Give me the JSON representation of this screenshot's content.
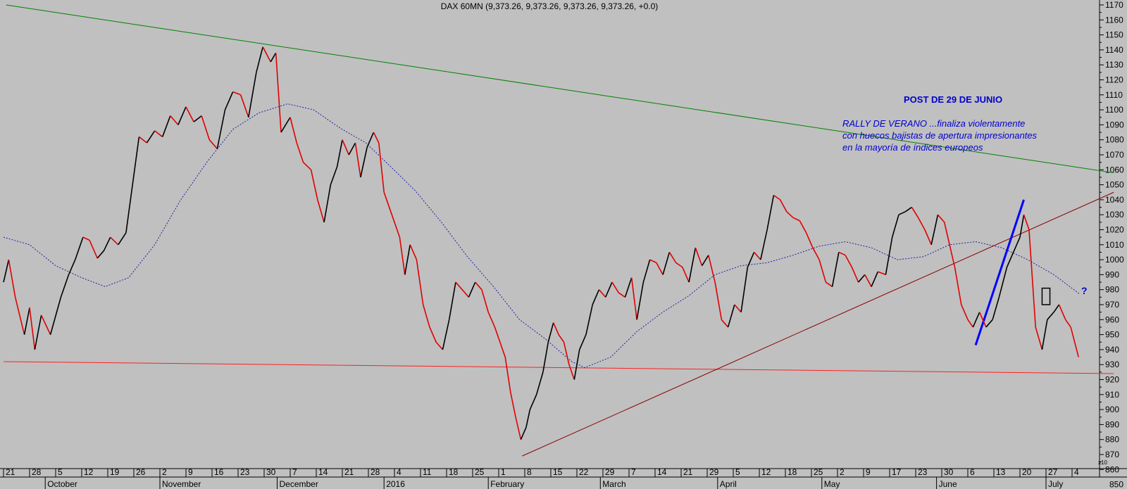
{
  "chart_data": {
    "type": "line",
    "title": "DAX 60MN (9,373.26, 9,373.26, 9,373.26, 9,373.26, +0.0)",
    "ylim": [
      850,
      1170
    ],
    "y_multiplier_label": "x10",
    "y_ticks": [
      860,
      870,
      880,
      890,
      900,
      910,
      920,
      930,
      940,
      950,
      960,
      970,
      980,
      990,
      1000,
      1010,
      1020,
      1030,
      1040,
      1050,
      1060,
      1070,
      1080,
      1090,
      1100,
      1110,
      1120,
      1130,
      1140,
      1150,
      1160,
      1170
    ],
    "y_tick_text": [
      "860",
      "870",
      "880",
      "890",
      "900",
      "910",
      "920",
      "930",
      "940",
      "950",
      "960",
      "970",
      "980",
      "990",
      "1000",
      "1010",
      "1020",
      "1030",
      "1040",
      "1050",
      "1060",
      "1070",
      "1080",
      "1090",
      "1100",
      "1110",
      "1120",
      "1130",
      "1140",
      "1150",
      "1160",
      "1170"
    ],
    "y_end_label": "850",
    "x_range": [
      0,
      42.6
    ],
    "day_ticks": [
      "21",
      "28",
      "5",
      "12",
      "19",
      "26",
      "2",
      "9",
      "16",
      "23",
      "30",
      "7",
      "14",
      "21",
      "28",
      "4",
      "11",
      "18",
      "25",
      "1",
      "8",
      "15",
      "22",
      "29",
      "7",
      "14",
      "21",
      "29",
      "5",
      "12",
      "18",
      "25",
      "2",
      "9",
      "17",
      "23",
      "30",
      "6",
      "13",
      "20",
      "27",
      "4"
    ],
    "month_labels": [
      {
        "text": "October",
        "week": 1.6
      },
      {
        "text": "November",
        "week": 6.0
      },
      {
        "text": "December",
        "week": 10.5
      },
      {
        "text": "2016",
        "week": 14.6
      },
      {
        "text": "February",
        "week": 18.6
      },
      {
        "text": "March",
        "week": 22.9
      },
      {
        "text": "April",
        "week": 27.4
      },
      {
        "text": "May",
        "week": 31.4
      },
      {
        "text": "June",
        "week": 35.8
      },
      {
        "text": "July",
        "week": 40.0
      }
    ],
    "series": [
      {
        "kind": "price",
        "colors": {
          "up": "#000000",
          "down": "#e00000"
        },
        "points": [
          [
            0.0,
            985
          ],
          [
            0.2,
            1000
          ],
          [
            0.45,
            975
          ],
          [
            0.8,
            950
          ],
          [
            1.0,
            968
          ],
          [
            1.2,
            940
          ],
          [
            1.45,
            963
          ],
          [
            1.8,
            950
          ],
          [
            2.2,
            975
          ],
          [
            2.5,
            990
          ],
          [
            2.75,
            1000
          ],
          [
            3.05,
            1015
          ],
          [
            3.3,
            1013
          ],
          [
            3.6,
            1001
          ],
          [
            3.85,
            1006
          ],
          [
            4.1,
            1015
          ],
          [
            4.4,
            1010
          ],
          [
            4.7,
            1018
          ],
          [
            4.95,
            1050
          ],
          [
            5.2,
            1082
          ],
          [
            5.5,
            1078
          ],
          [
            5.8,
            1086
          ],
          [
            6.1,
            1082
          ],
          [
            6.4,
            1096
          ],
          [
            6.7,
            1090
          ],
          [
            7.0,
            1102
          ],
          [
            7.3,
            1092
          ],
          [
            7.6,
            1096
          ],
          [
            7.9,
            1080
          ],
          [
            8.2,
            1074
          ],
          [
            8.5,
            1100
          ],
          [
            8.8,
            1112
          ],
          [
            9.1,
            1110
          ],
          [
            9.4,
            1095
          ],
          [
            9.7,
            1125
          ],
          [
            9.95,
            1142
          ],
          [
            10.25,
            1132
          ],
          [
            10.45,
            1138
          ],
          [
            10.65,
            1085
          ],
          [
            11.0,
            1095
          ],
          [
            11.25,
            1078
          ],
          [
            11.5,
            1065
          ],
          [
            11.8,
            1060
          ],
          [
            12.05,
            1040
          ],
          [
            12.3,
            1025
          ],
          [
            12.55,
            1050
          ],
          [
            12.8,
            1062
          ],
          [
            13.0,
            1080
          ],
          [
            13.25,
            1070
          ],
          [
            13.5,
            1078
          ],
          [
            13.7,
            1055
          ],
          [
            13.95,
            1075
          ],
          [
            14.2,
            1085
          ],
          [
            14.4,
            1078
          ],
          [
            14.6,
            1045
          ],
          [
            14.9,
            1030
          ],
          [
            15.2,
            1015
          ],
          [
            15.4,
            990
          ],
          [
            15.6,
            1010
          ],
          [
            15.85,
            1000
          ],
          [
            16.1,
            970
          ],
          [
            16.35,
            955
          ],
          [
            16.6,
            945
          ],
          [
            16.85,
            940
          ],
          [
            17.1,
            960
          ],
          [
            17.35,
            985
          ],
          [
            17.6,
            980
          ],
          [
            17.85,
            975
          ],
          [
            18.1,
            985
          ],
          [
            18.35,
            980
          ],
          [
            18.6,
            965
          ],
          [
            18.85,
            955
          ],
          [
            19.05,
            945
          ],
          [
            19.25,
            935
          ],
          [
            19.45,
            912
          ],
          [
            19.65,
            895
          ],
          [
            19.85,
            880
          ],
          [
            20.05,
            888
          ],
          [
            20.2,
            900
          ],
          [
            20.45,
            910
          ],
          [
            20.7,
            925
          ],
          [
            20.9,
            945
          ],
          [
            21.1,
            958
          ],
          [
            21.3,
            950
          ],
          [
            21.5,
            945
          ],
          [
            21.7,
            930
          ],
          [
            21.9,
            920
          ],
          [
            22.1,
            940
          ],
          [
            22.35,
            950
          ],
          [
            22.6,
            970
          ],
          [
            22.85,
            980
          ],
          [
            23.1,
            975
          ],
          [
            23.35,
            985
          ],
          [
            23.6,
            978
          ],
          [
            23.85,
            975
          ],
          [
            24.1,
            988
          ],
          [
            24.3,
            960
          ],
          [
            24.55,
            985
          ],
          [
            24.8,
            1000
          ],
          [
            25.05,
            998
          ],
          [
            25.3,
            990
          ],
          [
            25.55,
            1005
          ],
          [
            25.8,
            998
          ],
          [
            26.05,
            995
          ],
          [
            26.3,
            985
          ],
          [
            26.55,
            1008
          ],
          [
            26.8,
            996
          ],
          [
            27.05,
            1003
          ],
          [
            27.3,
            985
          ],
          [
            27.55,
            960
          ],
          [
            27.8,
            955
          ],
          [
            28.05,
            970
          ],
          [
            28.3,
            965
          ],
          [
            28.55,
            995
          ],
          [
            28.8,
            1005
          ],
          [
            29.05,
            1000
          ],
          [
            29.3,
            1020
          ],
          [
            29.55,
            1043
          ],
          [
            29.8,
            1040
          ],
          [
            30.05,
            1032
          ],
          [
            30.3,
            1028
          ],
          [
            30.55,
            1026
          ],
          [
            30.8,
            1018
          ],
          [
            31.05,
            1008
          ],
          [
            31.3,
            1000
          ],
          [
            31.55,
            985
          ],
          [
            31.8,
            982
          ],
          [
            32.05,
            1005
          ],
          [
            32.3,
            1003
          ],
          [
            32.55,
            995
          ],
          [
            32.8,
            985
          ],
          [
            33.05,
            990
          ],
          [
            33.3,
            982
          ],
          [
            33.55,
            992
          ],
          [
            33.85,
            990
          ],
          [
            34.1,
            1015
          ],
          [
            34.35,
            1030
          ],
          [
            34.6,
            1032
          ],
          [
            34.85,
            1035
          ],
          [
            35.1,
            1028
          ],
          [
            35.35,
            1020
          ],
          [
            35.6,
            1010
          ],
          [
            35.85,
            1030
          ],
          [
            36.1,
            1025
          ],
          [
            36.3,
            1010
          ],
          [
            36.5,
            995
          ],
          [
            36.75,
            970
          ],
          [
            37.0,
            960
          ],
          [
            37.2,
            955
          ],
          [
            37.45,
            965
          ],
          [
            37.7,
            955
          ],
          [
            37.95,
            960
          ],
          [
            38.2,
            975
          ],
          [
            38.5,
            995
          ],
          [
            38.75,
            1005
          ],
          [
            39.0,
            1015
          ],
          [
            39.15,
            1030
          ],
          [
            39.35,
            1020
          ],
          [
            39.6,
            955
          ],
          [
            39.85,
            940
          ],
          [
            40.05,
            960
          ],
          [
            40.3,
            965
          ],
          [
            40.5,
            970
          ],
          [
            40.75,
            960
          ],
          [
            40.95,
            955
          ],
          [
            41.25,
            935
          ]
        ]
      },
      {
        "kind": "moving-average",
        "style": "dotted",
        "color": "#2020a0",
        "points": [
          [
            0.0,
            1015
          ],
          [
            1.0,
            1010
          ],
          [
            2.0,
            996
          ],
          [
            3.0,
            988
          ],
          [
            3.9,
            982
          ],
          [
            4.8,
            988
          ],
          [
            5.8,
            1010
          ],
          [
            6.8,
            1040
          ],
          [
            7.8,
            1065
          ],
          [
            8.8,
            1087
          ],
          [
            9.8,
            1098
          ],
          [
            10.9,
            1104
          ],
          [
            11.9,
            1100
          ],
          [
            12.9,
            1088
          ],
          [
            13.9,
            1078
          ],
          [
            14.8,
            1063
          ],
          [
            15.8,
            1046
          ],
          [
            16.8,
            1025
          ],
          [
            17.8,
            1002
          ],
          [
            18.8,
            982
          ],
          [
            19.8,
            960
          ],
          [
            20.8,
            947
          ],
          [
            21.8,
            932
          ],
          [
            22.3,
            928
          ],
          [
            23.3,
            935
          ],
          [
            24.3,
            952
          ],
          [
            25.3,
            965
          ],
          [
            26.3,
            976
          ],
          [
            27.3,
            990
          ],
          [
            28.3,
            996
          ],
          [
            29.3,
            998
          ],
          [
            30.3,
            1003
          ],
          [
            31.3,
            1009
          ],
          [
            32.3,
            1012
          ],
          [
            33.3,
            1008
          ],
          [
            34.3,
            1000
          ],
          [
            35.3,
            1002
          ],
          [
            36.3,
            1010
          ],
          [
            37.3,
            1012
          ],
          [
            38.3,
            1008
          ],
          [
            39.3,
            1000
          ],
          [
            40.3,
            990
          ],
          [
            41.3,
            977
          ]
        ]
      }
    ],
    "trendlines": [
      {
        "color": "#008000",
        "from": [
          0.1,
          1170
        ],
        "to": [
          42.6,
          1058
        ]
      },
      {
        "color": "#ff2020",
        "from": [
          0.0,
          932
        ],
        "to": [
          42.6,
          924
        ]
      },
      {
        "color": "#8b0000",
        "from": [
          19.9,
          869
        ],
        "to": [
          42.6,
          1045
        ]
      },
      {
        "color": "#0000ff",
        "from": [
          37.3,
          943
        ],
        "to": [
          39.15,
          1040
        ]
      }
    ],
    "rectangle": {
      "from": [
        39.85,
        970
      ],
      "to": [
        40.15,
        981
      ]
    },
    "annotations": {
      "post_title": "POST DE 29 DE JUNIO",
      "note_lines": [
        "RALLY DE VERANO ...finaliza violentamente",
        "con huecos bajistas de apertura impresionantes",
        "en la mayoría de índices europeos"
      ],
      "question_mark": "?"
    }
  }
}
